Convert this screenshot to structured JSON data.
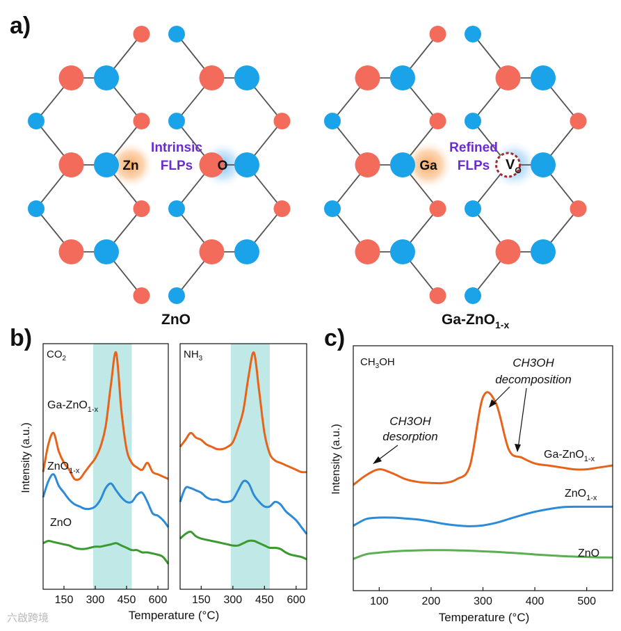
{
  "panel_a": {
    "label": "a)",
    "colors": {
      "oxygen": "#f26b5b",
      "zinc": "#1aa3e8",
      "gallium": "#7dcc4a",
      "bond": "#555555",
      "text_purple": "#6a2bd0"
    },
    "left": {
      "caption": "ZnO",
      "zn_label": "Zn",
      "o_label": "O",
      "flp_line1": "Intrinsic",
      "flp_line2": "FLPs"
    },
    "right": {
      "caption_main": "Ga-ZnO",
      "caption_sub": "1-x",
      "ga_label": "Ga",
      "vo_main": "V",
      "vo_sub": "O",
      "flp_line1": "Refined",
      "flp_line2": "FLPs"
    }
  },
  "panel_b": {
    "label": "b)",
    "ylabel": "Intensity (a.u.)",
    "xlabel": "Temperature (°C)",
    "gas_labels": [
      {
        "main": "CO",
        "sub": "2"
      },
      {
        "main": "NH",
        "sub": "3"
      }
    ],
    "sample_labels": [
      {
        "main": "Ga-ZnO",
        "sub": "1-x"
      },
      {
        "main": "ZnO",
        "sub": "1-x"
      },
      {
        "main": "ZnO",
        "sub": ""
      }
    ]
  },
  "panel_c": {
    "label": "c)",
    "gas_main": "CH",
    "gas_sub": "3",
    "gas_tail": "OH",
    "ylabel": "Intensity (a.u.)",
    "xlabel": "Temperature (°C)",
    "ann_desorption": {
      "line1": "CH3OH",
      "line2": "desorption"
    },
    "ann_decomposition": {
      "line1": "CH3OH",
      "line2": "decomposition"
    },
    "sample_labels": [
      {
        "main": "Ga-ZnO",
        "sub": "1-x"
      },
      {
        "main": "ZnO",
        "sub": "1-x"
      },
      {
        "main": "ZnO",
        "sub": ""
      }
    ]
  },
  "watermark": "六啟跨境",
  "chart_data": [
    {
      "type": "line",
      "title": "CO2",
      "xlabel": "Temperature (°C)",
      "ylabel": "Intensity (a.u.)",
      "xlim": [
        50,
        650
      ],
      "x_ticks": [
        150,
        300,
        450,
        600
      ],
      "highlight_range": [
        290,
        475
      ],
      "x": [
        50,
        75,
        100,
        125,
        150,
        175,
        200,
        225,
        250,
        275,
        300,
        325,
        350,
        375,
        400,
        425,
        450,
        475,
        500,
        525,
        550,
        575,
        600,
        625,
        650
      ],
      "series": [
        {
          "name": "Ga-ZnO1-x",
          "color": "#e8631a",
          "values": [
            4.5,
            5.7,
            6.2,
            5.4,
            4.9,
            4.6,
            4.2,
            4.2,
            4.5,
            4.8,
            5.1,
            5.6,
            6.5,
            8.3,
            9.7,
            7.2,
            5.5,
            4.9,
            4.7,
            4.6,
            4.9,
            4.5,
            4.4,
            4.3,
            4.2
          ]
        },
        {
          "name": "ZnO1-x",
          "color": "#2b8bd8",
          "values": [
            3.4,
            4.1,
            4.4,
            3.9,
            3.6,
            3.3,
            3.1,
            3.0,
            2.9,
            2.9,
            3.0,
            3.3,
            3.8,
            4.0,
            3.7,
            3.4,
            3.2,
            3.2,
            3.5,
            3.6,
            3.2,
            2.7,
            2.6,
            2.4,
            2.1
          ]
        },
        {
          "name": "ZnO",
          "color": "#3a9a2e",
          "values": [
            1.4,
            1.5,
            1.45,
            1.4,
            1.35,
            1.3,
            1.2,
            1.15,
            1.15,
            1.2,
            1.25,
            1.25,
            1.3,
            1.35,
            1.4,
            1.3,
            1.2,
            1.1,
            1.1,
            1.0,
            1.0,
            0.95,
            0.9,
            0.8,
            0.5
          ]
        }
      ]
    },
    {
      "type": "line",
      "title": "NH3",
      "xlabel": "Temperature (°C)",
      "ylabel": "Intensity (a.u.)",
      "xlim": [
        50,
        650
      ],
      "x_ticks": [
        150,
        300,
        450,
        600
      ],
      "highlight_range": [
        290,
        475
      ],
      "x": [
        50,
        75,
        100,
        125,
        150,
        175,
        200,
        225,
        250,
        275,
        300,
        325,
        350,
        375,
        400,
        425,
        450,
        475,
        500,
        525,
        550,
        575,
        600,
        625,
        650
      ],
      "series": [
        {
          "name": "Ga-ZnO1-x",
          "color": "#e8631a",
          "values": [
            5.6,
            5.9,
            6.2,
            6.0,
            5.9,
            5.7,
            5.6,
            5.5,
            5.5,
            5.6,
            5.8,
            6.4,
            7.2,
            8.7,
            9.7,
            8.0,
            6.2,
            5.3,
            5.0,
            4.9,
            4.8,
            4.7,
            4.6,
            4.5,
            4.5
          ]
        },
        {
          "name": "ZnO1-x",
          "color": "#2b8bd8",
          "values": [
            3.2,
            3.8,
            3.8,
            3.7,
            3.6,
            3.4,
            3.3,
            3.3,
            3.2,
            3.2,
            3.3,
            3.7,
            4.1,
            4.0,
            3.5,
            3.2,
            3.0,
            3.0,
            3.2,
            3.1,
            2.8,
            2.6,
            2.4,
            2.1,
            1.8
          ]
        },
        {
          "name": "ZnO",
          "color": "#3a9a2e",
          "values": [
            1.6,
            1.8,
            1.9,
            1.7,
            1.6,
            1.55,
            1.5,
            1.45,
            1.4,
            1.35,
            1.3,
            1.3,
            1.4,
            1.5,
            1.5,
            1.4,
            1.3,
            1.2,
            1.2,
            1.15,
            1.0,
            0.9,
            0.85,
            0.8,
            0.7
          ]
        }
      ]
    },
    {
      "type": "line",
      "title": "CH3OH",
      "xlabel": "Temperature (°C)",
      "ylabel": "Intensity (a.u.)",
      "xlim": [
        50,
        550
      ],
      "x_ticks": [
        100,
        200,
        300,
        400,
        500
      ],
      "x": [
        50,
        75,
        100,
        125,
        150,
        175,
        200,
        225,
        250,
        275,
        300,
        325,
        350,
        375,
        400,
        425,
        450,
        475,
        500,
        525,
        550
      ],
      "series": [
        {
          "name": "Ga-ZnO1-x",
          "color": "#e8631a",
          "values": [
            4.0,
            4.5,
            4.8,
            4.6,
            4.3,
            4.15,
            4.1,
            4.1,
            4.3,
            5.0,
            8.5,
            8.2,
            5.8,
            5.4,
            5.1,
            5.0,
            4.9,
            4.8,
            4.8,
            4.9,
            5.0
          ]
        },
        {
          "name": "ZnO1-x",
          "color": "#2b8bd8",
          "values": [
            1.9,
            2.25,
            2.32,
            2.32,
            2.28,
            2.22,
            2.12,
            2.0,
            1.92,
            1.88,
            1.92,
            2.05,
            2.25,
            2.45,
            2.62,
            2.75,
            2.85,
            2.88,
            2.88,
            2.88,
            2.88
          ]
        },
        {
          "name": "ZnO",
          "color": "#5cae52",
          "values": [
            0.2,
            0.44,
            0.52,
            0.58,
            0.62,
            0.64,
            0.65,
            0.65,
            0.64,
            0.62,
            0.59,
            0.56,
            0.52,
            0.48,
            0.43,
            0.39,
            0.35,
            0.32,
            0.3,
            0.28,
            0.27
          ]
        }
      ]
    }
  ]
}
